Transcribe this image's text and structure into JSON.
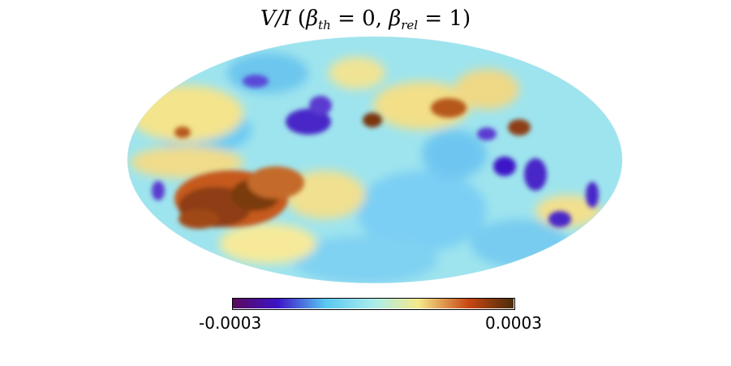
{
  "title": {
    "lhs": "V/I",
    "beta_th_symbol": "β",
    "beta_th_sub": "th",
    "beta_th_value": "0",
    "beta_rel_symbol": "β",
    "beta_rel_sub": "rel",
    "beta_rel_value": "1"
  },
  "projection": "mollweide",
  "colormap": {
    "stops": [
      "#5a0a5a",
      "#3c14c8",
      "#5ac8f0",
      "#a8ecec",
      "#f5ea8c",
      "#c84614",
      "#4b2d0a"
    ],
    "min_label": "-0.0003",
    "max_label": "0.0003",
    "min_value": -0.0003,
    "max_value": 0.0003
  },
  "features": [
    {
      "kind": "warm",
      "level": 0.9,
      "note": "large brown region lower-left"
    },
    {
      "kind": "warm",
      "level": 0.75,
      "note": "orange-brown patches upper right"
    },
    {
      "kind": "warm",
      "level": 0.85,
      "note": "brown spot center-top"
    },
    {
      "kind": "cold",
      "level": 0.2,
      "note": "purple patches center and right"
    }
  ]
}
